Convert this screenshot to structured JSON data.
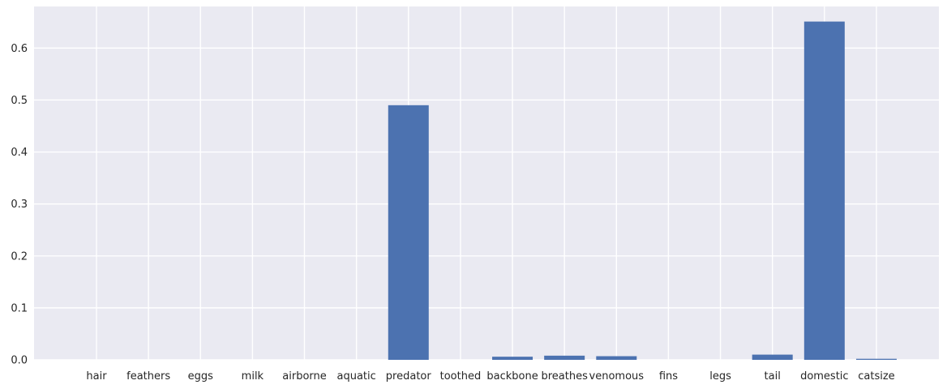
{
  "chart_data": {
    "type": "bar",
    "categories": [
      "hair",
      "feathers",
      "eggs",
      "milk",
      "airborne",
      "aquatic",
      "predator",
      "toothed",
      "backbone",
      "breathes",
      "venomous",
      "fins",
      "legs",
      "tail",
      "domestic",
      "catsize"
    ],
    "values": [
      0.0,
      0.0,
      0.0,
      0.0,
      0.0,
      0.0,
      0.49,
      0.0,
      0.006,
      0.008,
      0.007,
      0.0,
      0.0,
      0.01,
      0.651,
      0.002
    ],
    "ylim": [
      0,
      0.68
    ],
    "yticks": [
      "0.0",
      "0.1",
      "0.2",
      "0.3",
      "0.4",
      "0.5",
      "0.6"
    ],
    "ytick_values": [
      0,
      0.1,
      0.2,
      0.3,
      0.4,
      0.5,
      0.6
    ],
    "grid": true,
    "title": "",
    "xlabel": "",
    "ylabel": "",
    "colors": {
      "bar": "#4c72b0",
      "plot_background": "#eaeaf2",
      "grid": "#ffffff",
      "text": "#262626"
    }
  }
}
